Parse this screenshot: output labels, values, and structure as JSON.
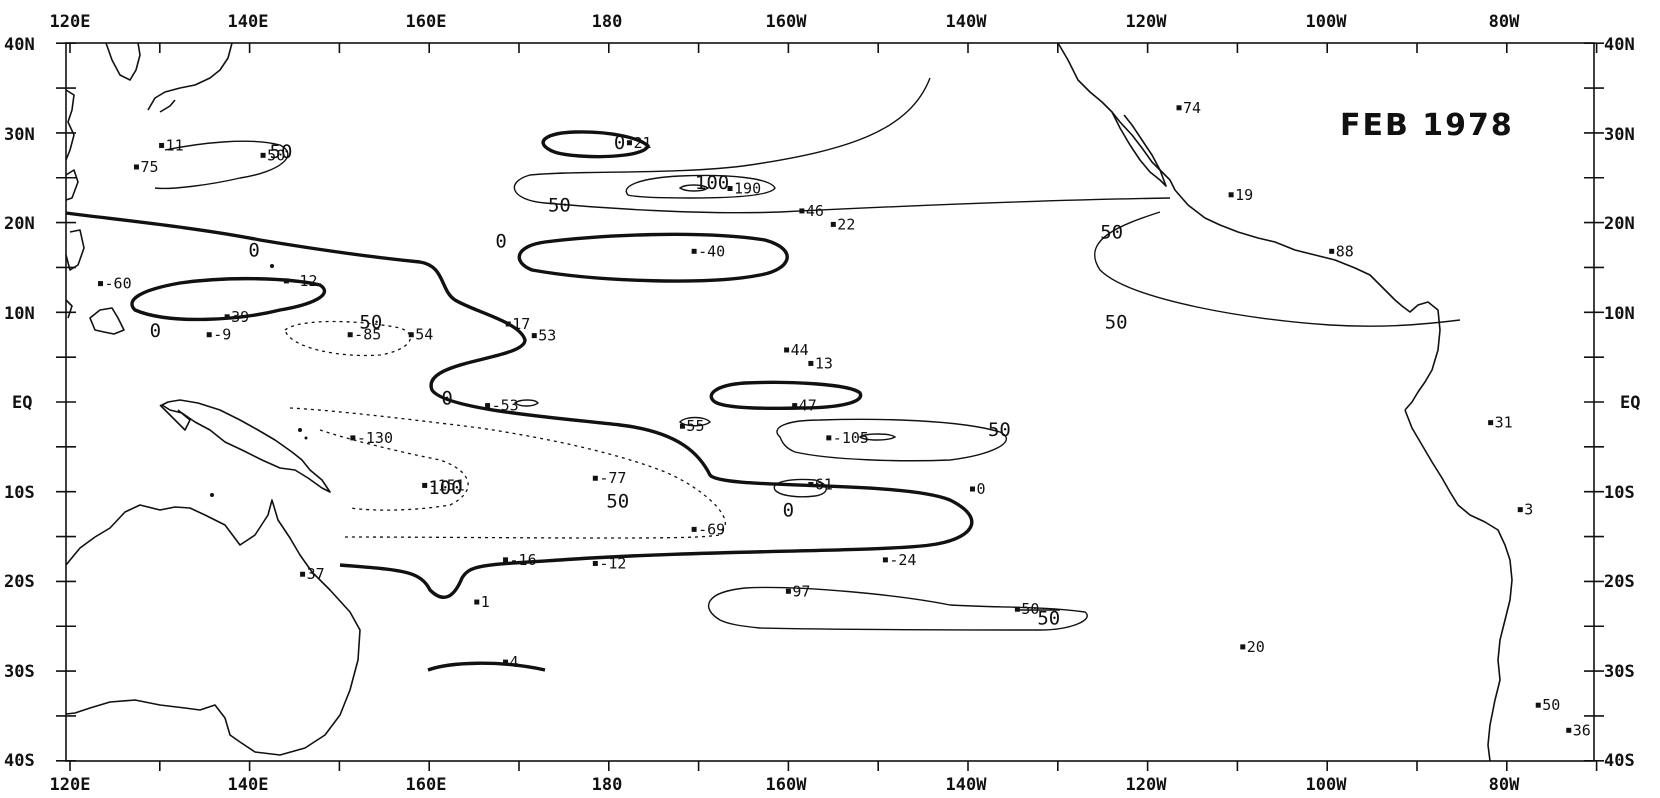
{
  "title": "FEB 1978",
  "axes": {
    "top_labels": [
      "120E",
      "140E",
      "160E",
      "180",
      "160W",
      "140W",
      "120W",
      "100W",
      "80W"
    ],
    "bottom_labels": [
      "120E",
      "140E",
      "160E",
      "180",
      "160W",
      "140W",
      "120W",
      "100W",
      "80W"
    ],
    "left_labels": [
      "40N",
      "30N",
      "20N",
      "10N",
      "EQ",
      "10S",
      "20S",
      "30S",
      "40S"
    ],
    "right_labels": [
      "40N",
      "30N",
      "20N",
      "10N",
      "EQ",
      "10S",
      "20S",
      "30S",
      "40S"
    ]
  },
  "contour_labels": [
    {
      "text": "0",
      "lon": 140.5,
      "lat": 17
    },
    {
      "text": "0",
      "lon": 129.5,
      "lat": 8
    },
    {
      "text": "0",
      "lon": 168,
      "lat": 18
    },
    {
      "text": "0",
      "lon": 162,
      "lat": 0.5
    },
    {
      "text": "0",
      "lon": -160,
      "lat": -12
    },
    {
      "text": "0",
      "lon": 181.2,
      "lat": 29
    },
    {
      "text": "50",
      "lon": 143.5,
      "lat": 28
    },
    {
      "text": "50",
      "lon": 153.5,
      "lat": 9
    },
    {
      "text": "50",
      "lon": 174.5,
      "lat": 22
    },
    {
      "text": "50",
      "lon": -136.5,
      "lat": -3
    },
    {
      "text": "50",
      "lon": -124,
      "lat": 19
    },
    {
      "text": "50",
      "lon": -123.5,
      "lat": 9
    },
    {
      "text": "50",
      "lon": 181,
      "lat": -11
    },
    {
      "text": "50",
      "lon": -131,
      "lat": -24
    },
    {
      "text": "100",
      "lon": 191.5,
      "lat": 24.5
    },
    {
      "text": "100",
      "lon": 161.8,
      "lat": -9.5
    }
  ],
  "stations": [
    {
      "value": "11",
      "lon": 130.2,
      "lat": 28.6
    },
    {
      "value": "75",
      "lon": 127.4,
      "lat": 26.2
    },
    {
      "value": "50",
      "lon": 141.5,
      "lat": 27.5
    },
    {
      "value": "-60",
      "lon": 123.4,
      "lat": 13.2
    },
    {
      "value": "-12",
      "lon": 144.1,
      "lat": 13.5
    },
    {
      "value": "39",
      "lon": 137.5,
      "lat": 9.5
    },
    {
      "value": "-9",
      "lon": 135.5,
      "lat": 7.5
    },
    {
      "value": "-85",
      "lon": 151.2,
      "lat": 7.5
    },
    {
      "value": "54",
      "lon": 158,
      "lat": 7.5
    },
    {
      "value": "17",
      "lon": 168.8,
      "lat": 8.7
    },
    {
      "value": "53",
      "lon": 171.7,
      "lat": 7.4
    },
    {
      "value": "-53",
      "lon": 166.5,
      "lat": -0.4
    },
    {
      "value": "-130",
      "lon": 151.5,
      "lat": -4
    },
    {
      "value": "-151",
      "lon": 159.5,
      "lat": -9.3
    },
    {
      "value": "-77",
      "lon": 178.5,
      "lat": -8.5
    },
    {
      "value": "-69",
      "lon": 189.5,
      "lat": -14.2
    },
    {
      "value": "-16",
      "lon": 168.5,
      "lat": -17.6
    },
    {
      "value": "-12",
      "lon": 178.5,
      "lat": -18
    },
    {
      "value": "21",
      "lon": 182.3,
      "lat": 28.9
    },
    {
      "value": "190",
      "lon": 193.5,
      "lat": 23.8
    },
    {
      "value": "-40",
      "lon": 189.5,
      "lat": 16.8
    },
    {
      "value": "46",
      "lon": -158.5,
      "lat": 21.3
    },
    {
      "value": "22",
      "lon": -155,
      "lat": 19.8
    },
    {
      "value": "74",
      "lon": -116.5,
      "lat": 32.8
    },
    {
      "value": "19",
      "lon": -110.7,
      "lat": 23.1
    },
    {
      "value": "88",
      "lon": -99.5,
      "lat": 16.8
    },
    {
      "value": "44",
      "lon": -160.2,
      "lat": 5.8
    },
    {
      "value": "13",
      "lon": -157.5,
      "lat": 4.3
    },
    {
      "value": "47",
      "lon": -159.3,
      "lat": -0.4
    },
    {
      "value": "55",
      "lon": -171.8,
      "lat": -2.7
    },
    {
      "value": "-105",
      "lon": -155.5,
      "lat": -4
    },
    {
      "value": "61",
      "lon": -157.5,
      "lat": -9.2
    },
    {
      "value": "0",
      "lon": -139.5,
      "lat": -9.7
    },
    {
      "value": "-24",
      "lon": -149.2,
      "lat": -17.6
    },
    {
      "value": "97",
      "lon": -160,
      "lat": -21.1
    },
    {
      "value": "50",
      "lon": -134.5,
      "lat": -23.1
    },
    {
      "value": "31",
      "lon": -81.8,
      "lat": -2.3
    },
    {
      "value": "3",
      "lon": -78.5,
      "lat": -12
    },
    {
      "value": "20",
      "lon": -109.4,
      "lat": -27.3
    },
    {
      "value": "50",
      "lon": -76.5,
      "lat": -33.8
    },
    {
      "value": "36",
      "lon": -73.1,
      "lat": -36.6
    },
    {
      "value": "37",
      "lon": 145.9,
      "lat": -19.2
    },
    {
      "value": "4",
      "lon": 168.5,
      "lat": -29
    },
    {
      "value": "1",
      "lon": 165.3,
      "lat": -22.3
    }
  ]
}
